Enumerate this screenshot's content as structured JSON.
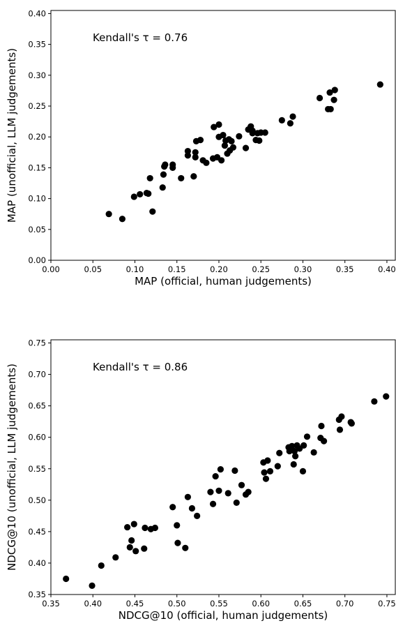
{
  "chart_data": [
    {
      "type": "scatter",
      "title": "",
      "xlabel": "MAP (official, human judgements)",
      "ylabel": "MAP (unofficial, LLM judgements)",
      "xlim": [
        0.0,
        0.41
      ],
      "ylim": [
        0.0,
        0.405
      ],
      "xticks": [
        "0.00",
        "0.05",
        "0.10",
        "0.15",
        "0.20",
        "0.25",
        "0.30",
        "0.35",
        "0.40"
      ],
      "yticks": [
        "0.00",
        "0.05",
        "0.10",
        "0.15",
        "0.20",
        "0.25",
        "0.30",
        "0.35",
        "0.40"
      ],
      "annotation": "Kendall's τ = 0.76",
      "grid": false,
      "marker_color": "#000000",
      "points": [
        [
          0.069,
          0.075
        ],
        [
          0.085,
          0.067
        ],
        [
          0.099,
          0.103
        ],
        [
          0.106,
          0.107
        ],
        [
          0.114,
          0.109
        ],
        [
          0.116,
          0.108
        ],
        [
          0.118,
          0.133
        ],
        [
          0.121,
          0.079
        ],
        [
          0.133,
          0.118
        ],
        [
          0.134,
          0.139
        ],
        [
          0.135,
          0.152
        ],
        [
          0.136,
          0.155
        ],
        [
          0.145,
          0.15
        ],
        [
          0.145,
          0.155
        ],
        [
          0.155,
          0.133
        ],
        [
          0.163,
          0.17
        ],
        [
          0.163,
          0.177
        ],
        [
          0.17,
          0.136
        ],
        [
          0.172,
          0.167
        ],
        [
          0.172,
          0.175
        ],
        [
          0.173,
          0.193
        ],
        [
          0.178,
          0.195
        ],
        [
          0.181,
          0.162
        ],
        [
          0.185,
          0.158
        ],
        [
          0.193,
          0.165
        ],
        [
          0.194,
          0.216
        ],
        [
          0.198,
          0.167
        ],
        [
          0.2,
          0.2
        ],
        [
          0.2,
          0.22
        ],
        [
          0.203,
          0.162
        ],
        [
          0.205,
          0.203
        ],
        [
          0.207,
          0.186
        ],
        [
          0.208,
          0.194
        ],
        [
          0.21,
          0.173
        ],
        [
          0.212,
          0.196
        ],
        [
          0.213,
          0.178
        ],
        [
          0.215,
          0.193
        ],
        [
          0.217,
          0.183
        ],
        [
          0.224,
          0.201
        ],
        [
          0.232,
          0.182
        ],
        [
          0.235,
          0.212
        ],
        [
          0.238,
          0.217
        ],
        [
          0.24,
          0.206
        ],
        [
          0.24,
          0.21
        ],
        [
          0.244,
          0.195
        ],
        [
          0.246,
          0.206
        ],
        [
          0.248,
          0.194
        ],
        [
          0.25,
          0.207
        ],
        [
          0.255,
          0.207
        ],
        [
          0.275,
          0.227
        ],
        [
          0.285,
          0.222
        ],
        [
          0.288,
          0.233
        ],
        [
          0.32,
          0.263
        ],
        [
          0.33,
          0.245
        ],
        [
          0.332,
          0.272
        ],
        [
          0.333,
          0.245
        ],
        [
          0.337,
          0.26
        ],
        [
          0.338,
          0.276
        ],
        [
          0.392,
          0.285
        ]
      ]
    },
    {
      "type": "scatter",
      "title": "",
      "xlabel": "NDCG@10 (official, human judgements)",
      "ylabel": "NDCG@10 (unofficial, LLM judgements)",
      "xlim": [
        0.35,
        0.76
      ],
      "ylim": [
        0.35,
        0.755
      ],
      "xticks": [
        "0.35",
        "0.40",
        "0.45",
        "0.50",
        "0.55",
        "0.60",
        "0.65",
        "0.70",
        "0.75"
      ],
      "yticks": [
        "0.35",
        "0.40",
        "0.45",
        "0.50",
        "0.55",
        "0.60",
        "0.65",
        "0.70",
        "0.75"
      ],
      "annotation": "Kendall's τ = 0.86",
      "grid": false,
      "marker_color": "#000000",
      "points": [
        [
          0.368,
          0.375
        ],
        [
          0.399,
          0.364
        ],
        [
          0.41,
          0.396
        ],
        [
          0.427,
          0.409
        ],
        [
          0.441,
          0.457
        ],
        [
          0.444,
          0.425
        ],
        [
          0.446,
          0.436
        ],
        [
          0.449,
          0.462
        ],
        [
          0.451,
          0.419
        ],
        [
          0.461,
          0.423
        ],
        [
          0.462,
          0.456
        ],
        [
          0.469,
          0.454
        ],
        [
          0.474,
          0.456
        ],
        [
          0.495,
          0.489
        ],
        [
          0.5,
          0.46
        ],
        [
          0.501,
          0.432
        ],
        [
          0.51,
          0.424
        ],
        [
          0.513,
          0.505
        ],
        [
          0.518,
          0.487
        ],
        [
          0.524,
          0.475
        ],
        [
          0.54,
          0.513
        ],
        [
          0.543,
          0.494
        ],
        [
          0.546,
          0.538
        ],
        [
          0.55,
          0.515
        ],
        [
          0.552,
          0.549
        ],
        [
          0.561,
          0.511
        ],
        [
          0.569,
          0.547
        ],
        [
          0.571,
          0.496
        ],
        [
          0.577,
          0.524
        ],
        [
          0.582,
          0.509
        ],
        [
          0.585,
          0.513
        ],
        [
          0.603,
          0.56
        ],
        [
          0.604,
          0.544
        ],
        [
          0.606,
          0.534
        ],
        [
          0.608,
          0.563
        ],
        [
          0.611,
          0.546
        ],
        [
          0.62,
          0.554
        ],
        [
          0.622,
          0.575
        ],
        [
          0.633,
          0.584
        ],
        [
          0.634,
          0.578
        ],
        [
          0.637,
          0.586
        ],
        [
          0.639,
          0.557
        ],
        [
          0.64,
          0.578
        ],
        [
          0.641,
          0.57
        ],
        [
          0.643,
          0.587
        ],
        [
          0.646,
          0.582
        ],
        [
          0.65,
          0.546
        ],
        [
          0.651,
          0.587
        ],
        [
          0.655,
          0.601
        ],
        [
          0.663,
          0.576
        ],
        [
          0.671,
          0.599
        ],
        [
          0.672,
          0.618
        ],
        [
          0.675,
          0.594
        ],
        [
          0.693,
          0.628
        ],
        [
          0.694,
          0.612
        ],
        [
          0.696,
          0.633
        ],
        [
          0.707,
          0.624
        ],
        [
          0.708,
          0.622
        ],
        [
          0.735,
          0.657
        ],
        [
          0.749,
          0.665
        ]
      ]
    }
  ]
}
